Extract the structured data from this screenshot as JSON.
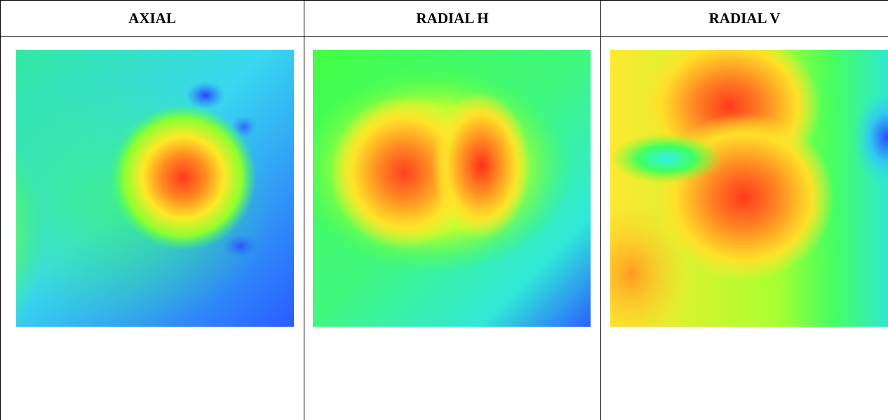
{
  "table": {
    "columns": [
      {
        "label": "AXIAL",
        "map": "axial-vibration-map"
      },
      {
        "label": "RADIAL H",
        "map": "radial-h-vibration-map"
      },
      {
        "label": "RADIAL V",
        "map": "radial-v-vibration-map"
      }
    ]
  }
}
